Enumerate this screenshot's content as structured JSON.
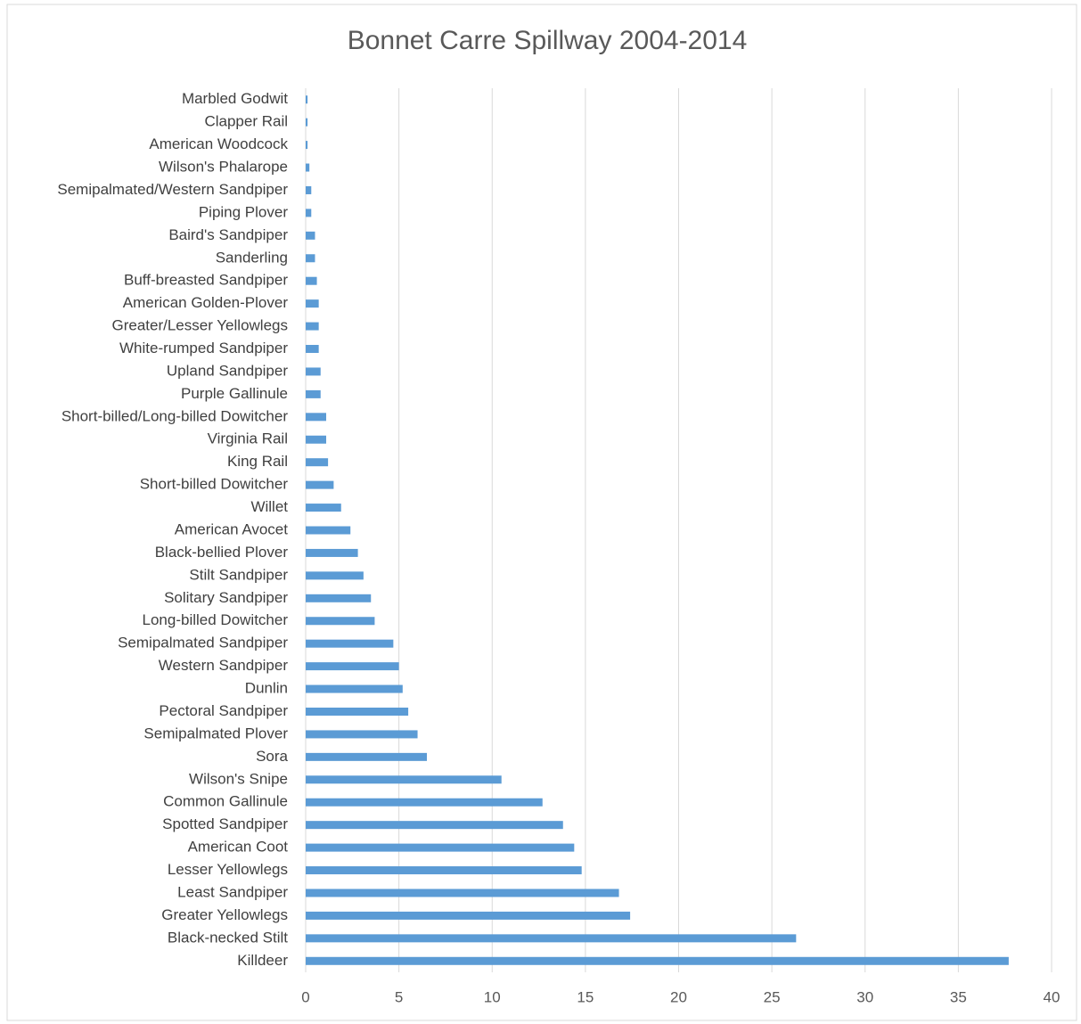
{
  "chart_data": {
    "type": "barh",
    "title": "Bonnet Carre Spillway 2004-2014",
    "categories": [
      "Marbled Godwit",
      "Clapper Rail",
      "American Woodcock",
      "Wilson's Phalarope",
      "Semipalmated/Western Sandpiper",
      "Piping Plover",
      "Baird's Sandpiper",
      "Sanderling",
      "Buff-breasted Sandpiper",
      "American Golden-Plover",
      "Greater/Lesser Yellowlegs",
      "White-rumped Sandpiper",
      "Upland Sandpiper",
      "Purple Gallinule",
      "Short-billed/Long-billed Dowitcher",
      "Virginia Rail",
      "King Rail",
      "Short-billed Dowitcher",
      "Willet",
      "American Avocet",
      "Black-bellied Plover",
      "Stilt Sandpiper",
      "Solitary Sandpiper",
      "Long-billed Dowitcher",
      "Semipalmated Sandpiper",
      "Western Sandpiper",
      "Dunlin",
      "Pectoral Sandpiper",
      "Semipalmated Plover",
      "Sora",
      "Wilson's Snipe",
      "Common Gallinule",
      "Spotted Sandpiper",
      "American Coot",
      "Lesser Yellowlegs",
      "Least Sandpiper",
      "Greater Yellowlegs",
      "Black-necked Stilt",
      "Killdeer"
    ],
    "values": [
      0.1,
      0.1,
      0.1,
      0.2,
      0.3,
      0.3,
      0.5,
      0.5,
      0.6,
      0.7,
      0.7,
      0.7,
      0.8,
      0.8,
      1.1,
      1.1,
      1.2,
      1.5,
      1.9,
      2.4,
      2.8,
      3.1,
      3.5,
      3.7,
      4.7,
      5.0,
      5.2,
      5.5,
      6.0,
      6.5,
      10.5,
      12.7,
      13.8,
      14.4,
      14.8,
      16.8,
      17.4,
      26.3,
      37.7
    ],
    "color": "#5b9bd5",
    "xlim": [
      0,
      40
    ],
    "xticks": [
      0,
      5,
      10,
      15,
      20,
      25,
      30,
      35,
      40
    ],
    "grid": true
  }
}
